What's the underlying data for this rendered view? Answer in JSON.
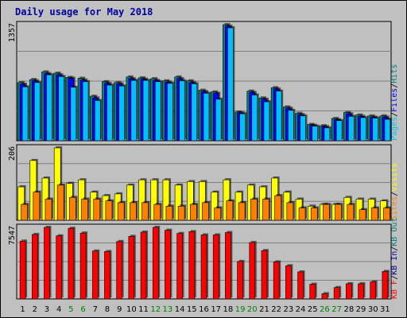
{
  "title": "Daily usage for May 2018",
  "colors": {
    "frame": "#c0c0c0",
    "plot_bg": "#c0c0c0",
    "grid": "#808080",
    "title": "#0000a0",
    "hits": "#008080",
    "files": "#0000ff",
    "pages": "#00c0ff",
    "visits": "#ffff00",
    "sites": "#ff8000",
    "kb_in": "#0000a0",
    "kb_out": "#008080",
    "kb_f": "#ff0000",
    "weekend": "#008000",
    "weekday": "#000000"
  },
  "chart_data": [
    {
      "type": "bar",
      "panel": "hits",
      "y_max_label": "1357",
      "ylim": [
        0,
        1357
      ],
      "legend": [
        "Pages",
        "/",
        "Files",
        "/",
        "Hits"
      ],
      "series": [
        {
          "name": "Hits",
          "values": [
            680,
            715,
            805,
            790,
            740,
            730,
            520,
            690,
            680,
            745,
            735,
            725,
            700,
            745,
            700,
            590,
            570,
            1357,
            335,
            580,
            500,
            620,
            395,
            320,
            190,
            175,
            260,
            330,
            300,
            290,
            290
          ]
        },
        {
          "name": "Files",
          "values": [
            660,
            700,
            785,
            770,
            730,
            710,
            500,
            670,
            665,
            725,
            720,
            705,
            685,
            725,
            680,
            575,
            555,
            1340,
            325,
            565,
            485,
            605,
            380,
            305,
            180,
            165,
            245,
            315,
            285,
            275,
            275
          ]
        },
        {
          "name": "Pages",
          "values": [
            630,
            680,
            770,
            750,
            625,
            690,
            470,
            650,
            640,
            705,
            705,
            690,
            670,
            700,
            665,
            555,
            485,
            1320,
            315,
            535,
            455,
            580,
            355,
            290,
            170,
            150,
            235,
            285,
            270,
            265,
            250
          ]
        }
      ]
    },
    {
      "type": "bar",
      "panel": "visits",
      "y_max_label": "206",
      "ylim": [
        0,
        206
      ],
      "legend": [
        "Sites",
        "/",
        "Visits"
      ],
      "series": [
        {
          "name": "Visits",
          "values": [
            95,
            170,
            120,
            206,
            105,
            115,
            80,
            70,
            75,
            100,
            115,
            115,
            115,
            100,
            110,
            110,
            80,
            115,
            80,
            100,
            95,
            120,
            80,
            60,
            40,
            45,
            45,
            65,
            60,
            60,
            55
          ]
        },
        {
          "name": "Sites",
          "values": [
            45,
            80,
            60,
            100,
            65,
            60,
            60,
            55,
            50,
            50,
            50,
            45,
            40,
            40,
            45,
            50,
            35,
            55,
            50,
            60,
            60,
            70,
            50,
            35,
            35,
            45,
            45,
            45,
            30,
            35,
            35
          ]
        }
      ]
    },
    {
      "type": "bar",
      "panel": "kbytes",
      "y_max_label": "7547",
      "ylim": [
        0,
        7547
      ],
      "legend": [
        "KB F",
        "/",
        "KB In",
        "/",
        "KB Out"
      ],
      "series": [
        {
          "name": "KB F",
          "values": [
            6100,
            6800,
            7547,
            6650,
            7450,
            6950,
            5050,
            5000,
            6050,
            6600,
            7050,
            7547,
            7250,
            6900,
            7100,
            6750,
            6750,
            7000,
            3950,
            5950,
            5100,
            3900,
            3500,
            2850,
            1550,
            550,
            1200,
            1600,
            1600,
            1800,
            2900
          ]
        }
      ]
    }
  ],
  "x_labels": [
    "1",
    "2",
    "3",
    "4",
    "5",
    "6",
    "7",
    "8",
    "9",
    "10",
    "11",
    "12",
    "13",
    "14",
    "15",
    "16",
    "17",
    "18",
    "19",
    "20",
    "21",
    "22",
    "23",
    "24",
    "25",
    "26",
    "27",
    "28",
    "29",
    "30",
    "31"
  ],
  "weekend_days": [
    "5",
    "6",
    "12",
    "13",
    "19",
    "20",
    "26",
    "27"
  ]
}
